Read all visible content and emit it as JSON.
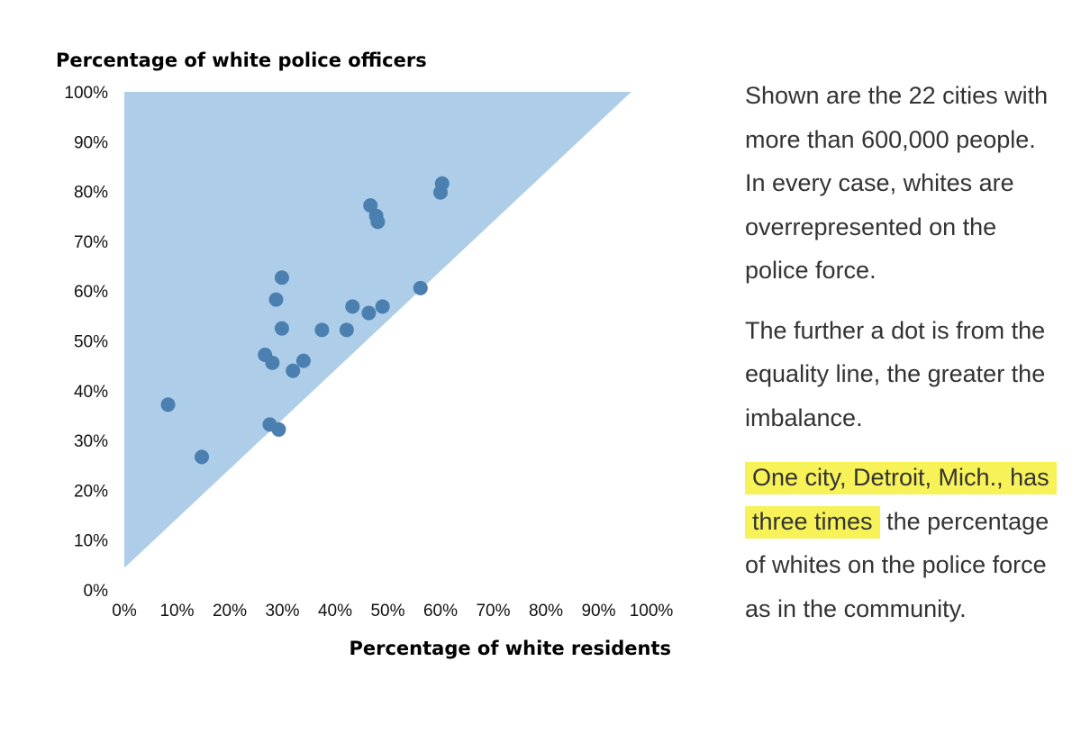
{
  "chart_data": {
    "type": "scatter",
    "ylabel": "Percentage of white police officers",
    "xlabel": "Percentage of white residents",
    "xlim": [
      0,
      100
    ],
    "ylim": [
      0,
      100
    ],
    "x_ticks": [
      "0%",
      "10%",
      "20%",
      "30%",
      "40%",
      "50%",
      "60%",
      "70%",
      "80%",
      "90%",
      "100%"
    ],
    "y_ticks": [
      "0%",
      "10%",
      "20%",
      "30%",
      "40%",
      "50%",
      "60%",
      "70%",
      "80%",
      "90%",
      "100%"
    ],
    "region": {
      "description": "shaded area above equality line",
      "color": "#aecde9"
    },
    "point_color": "#4a7fb0",
    "points": [
      {
        "x": 8.3,
        "y": 37.2
      },
      {
        "x": 14.7,
        "y": 26.7
      },
      {
        "x": 26.7,
        "y": 47.2
      },
      {
        "x": 27.6,
        "y": 33.2
      },
      {
        "x": 28.1,
        "y": 45.6
      },
      {
        "x": 28.8,
        "y": 58.3
      },
      {
        "x": 29.3,
        "y": 32.2
      },
      {
        "x": 29.9,
        "y": 62.7
      },
      {
        "x": 29.9,
        "y": 52.5
      },
      {
        "x": 32.0,
        "y": 44.0
      },
      {
        "x": 34.0,
        "y": 46.0
      },
      {
        "x": 37.5,
        "y": 52.2
      },
      {
        "x": 42.2,
        "y": 52.2
      },
      {
        "x": 43.3,
        "y": 56.9
      },
      {
        "x": 46.4,
        "y": 55.6
      },
      {
        "x": 46.7,
        "y": 77.2
      },
      {
        "x": 47.8,
        "y": 75.1
      },
      {
        "x": 48.1,
        "y": 73.9
      },
      {
        "x": 49.0,
        "y": 56.9
      },
      {
        "x": 56.2,
        "y": 60.6
      },
      {
        "x": 60.0,
        "y": 79.8
      },
      {
        "x": 60.3,
        "y": 81.6
      }
    ]
  },
  "caption": {
    "p1": "Shown are the 22 cities with more than 600,000 people. In every case, whites are overrepresented on the police force.",
    "p2": "The further a dot is from the equality line, the greater the imbalance.",
    "p3_highlight": "One city, Detroit, Mich., has three times",
    "p3_rest": " the percentage of whites on the police force as in the community."
  }
}
